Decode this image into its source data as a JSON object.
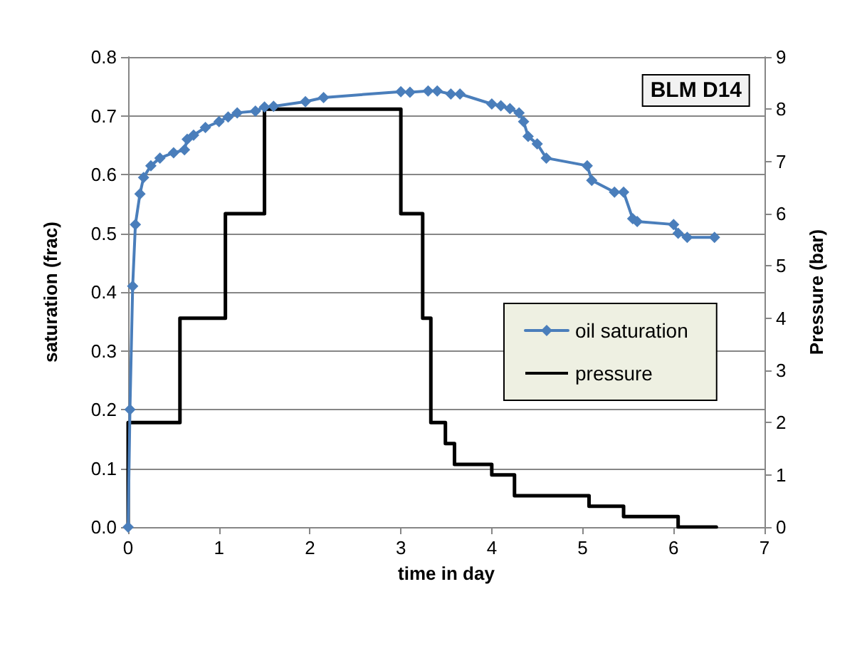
{
  "chart_data": {
    "type": "line",
    "title": "BLM D14",
    "xlabel": "time in day",
    "ylabel": "saturation (frac)",
    "y2label": "Pressure (bar)",
    "xlim": [
      0,
      7
    ],
    "xticks": [
      0,
      1,
      2,
      3,
      4,
      5,
      6,
      7
    ],
    "ylim": [
      0,
      0.8
    ],
    "yticks": [
      {
        "value": 0,
        "label": "0.0"
      },
      {
        "value": 0.1,
        "label": "0.1"
      },
      {
        "value": 0.2,
        "label": "0.2"
      },
      {
        "value": 0.3,
        "label": "0.3"
      },
      {
        "value": 0.4,
        "label": "0.4"
      },
      {
        "value": 0.5,
        "label": "0.5"
      },
      {
        "value": 0.6,
        "label": "0.6"
      },
      {
        "value": 0.7,
        "label": "0.7"
      },
      {
        "value": 0.8,
        "label": "0.8"
      }
    ],
    "y2lim": [
      0,
      9
    ],
    "y2ticks": [
      0,
      1,
      2,
      3,
      4,
      5,
      6,
      7,
      8,
      9
    ],
    "grid": "y",
    "legend": "right",
    "series": [
      {
        "name": "oil saturation",
        "color": "#4a7ebb",
        "marker": "diamond",
        "x": [
          0,
          0.02,
          0.05,
          0.08,
          0.13,
          0.17,
          0.25,
          0.35,
          0.5,
          0.62,
          0.65,
          0.72,
          0.85,
          1.0,
          1.1,
          1.2,
          1.4,
          1.5,
          1.6,
          1.95,
          2.15,
          3.0,
          3.1,
          3.3,
          3.4,
          3.55,
          3.65,
          4.0,
          4.1,
          4.2,
          4.3,
          4.35,
          4.4,
          4.5,
          4.6,
          5.05,
          5.1,
          5.35,
          5.45,
          5.55,
          5.6,
          6.0,
          6.05,
          6.15,
          6.45
        ],
        "values": [
          0,
          0.2,
          0.41,
          0.515,
          0.567,
          0.595,
          0.615,
          0.628,
          0.637,
          0.642,
          0.66,
          0.667,
          0.68,
          0.69,
          0.698,
          0.705,
          0.708,
          0.715,
          0.716,
          0.724,
          0.731,
          0.741,
          0.74,
          0.742,
          0.742,
          0.737,
          0.737,
          0.72,
          0.717,
          0.712,
          0.705,
          0.69,
          0.665,
          0.652,
          0.628,
          0.615,
          0.59,
          0.57,
          0.57,
          0.525,
          0.52,
          0.515,
          0.5,
          0.493,
          0.493
        ]
      },
      {
        "name": "pressure",
        "type": "step",
        "axis": "y2",
        "color": "#000000",
        "marker": "none",
        "x": [
          0,
          0,
          0.57,
          1.07,
          1.5,
          3.0,
          3.24,
          3.33,
          3.49,
          3.59,
          4.0,
          4.25,
          5.07,
          5.45,
          6.05,
          6.47
        ],
        "values": [
          0,
          2,
          4,
          6,
          8,
          6,
          4,
          2,
          1.6,
          1.2,
          1.0,
          0.6,
          0.4,
          0.2,
          0,
          0
        ]
      }
    ]
  }
}
